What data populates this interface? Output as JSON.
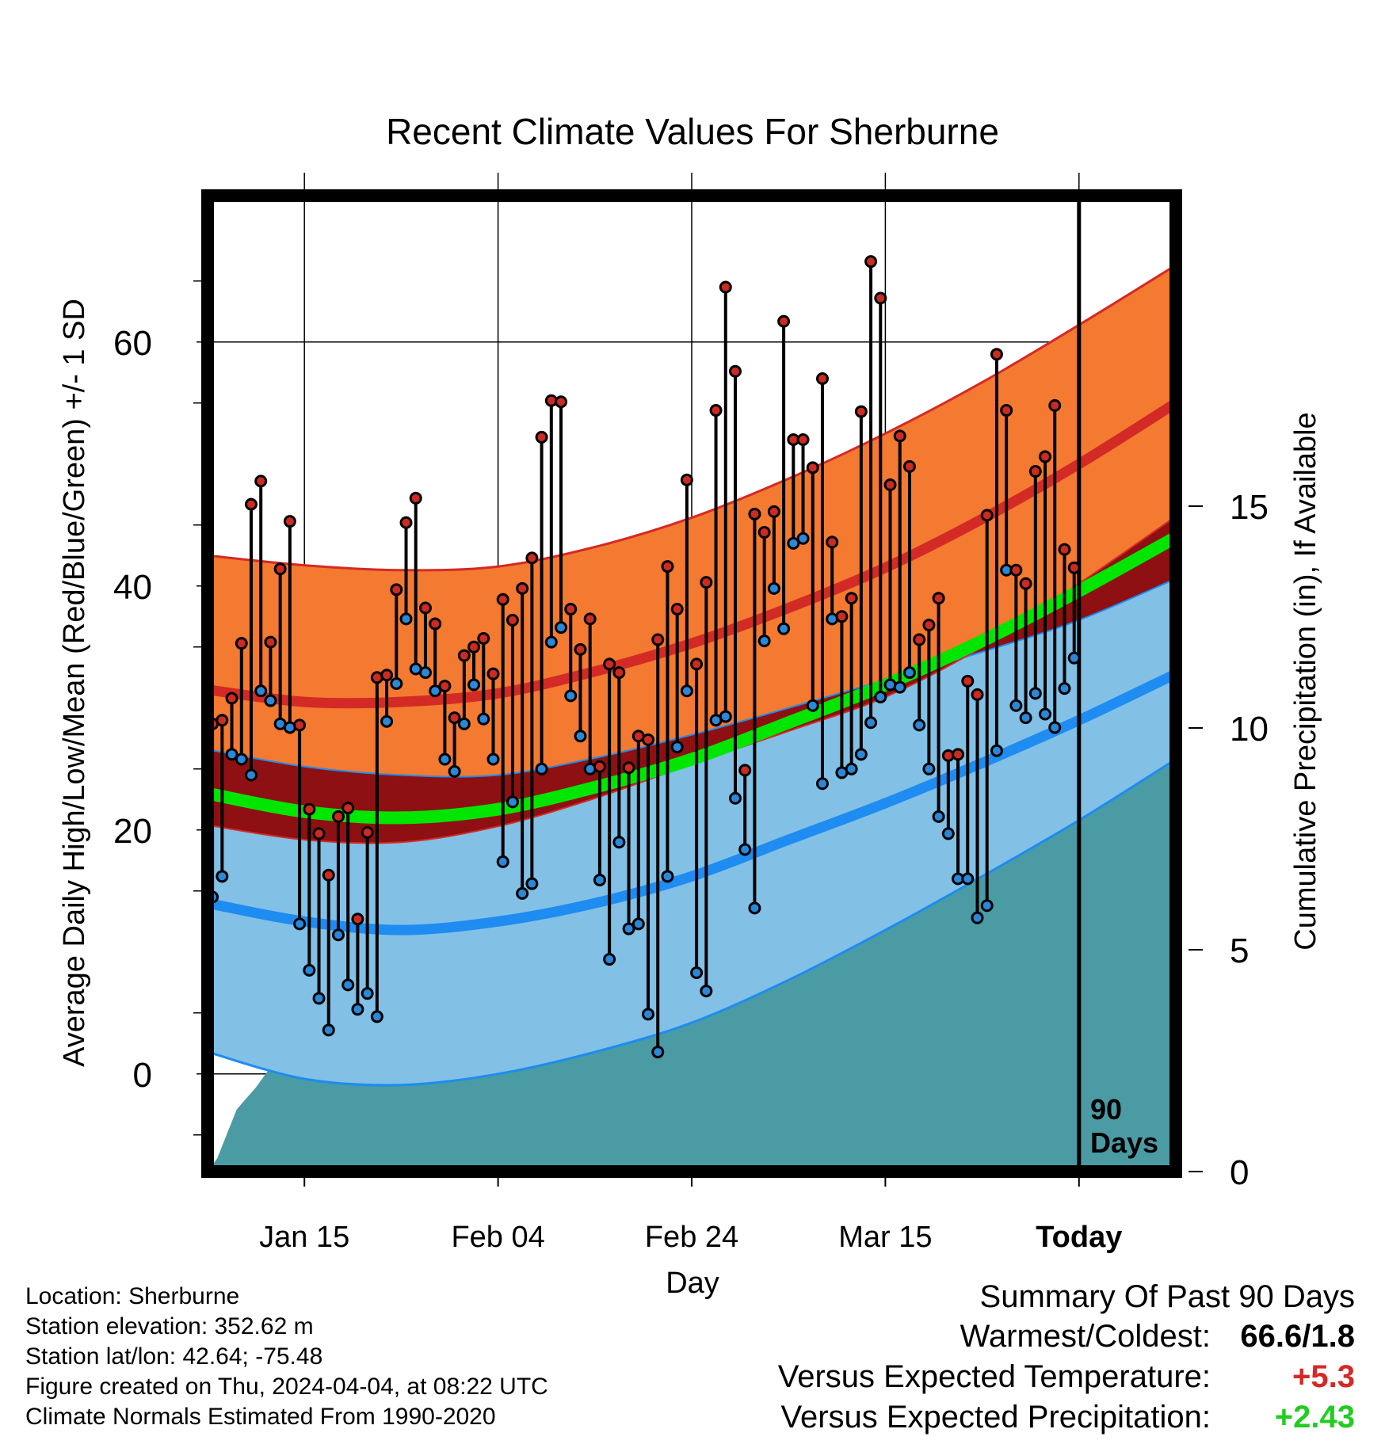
{
  "chart_data": {
    "type": "line",
    "title": "Recent Climate Values For Sherburne",
    "xlabel": "Day",
    "ylabel": "Average Daily High/Low/Mean (Red/Blue/Green) +/- 1 SD",
    "y2label": "Cumulative Precipitation (in), If Available",
    "x_tick_labels": [
      "Jan 15",
      "Feb 04",
      "Feb 24",
      "Mar 15",
      "Today"
    ],
    "x_tick_days": [
      10,
      30,
      50,
      70,
      90
    ],
    "x_range_days": [
      0,
      100
    ],
    "ylim": [
      -8,
      72
    ],
    "y_ticks": [
      0,
      20,
      40,
      60
    ],
    "y2lim": [
      0,
      22
    ],
    "y2_ticks": [
      0,
      5,
      10,
      15
    ],
    "grid": true,
    "today_marker": {
      "day": 90,
      "label_line1": "90",
      "label_line2": "Days"
    },
    "colors": {
      "high_band": "#f37a30",
      "high_mean": "#d42a26",
      "high_edge": "#d42a26",
      "low_band": "#82c0e6",
      "low_mean": "#1e8cf0",
      "low_edge": "#1e8cf0",
      "mean_line": "#00e600",
      "overlap_band": "#8e1012",
      "precip_area": "#4a9ba4",
      "high_point": "#cc2b22",
      "low_point": "#2b88d8"
    },
    "normals": {
      "days": [
        0,
        10,
        20,
        30,
        40,
        50,
        60,
        70,
        80,
        90,
        100
      ],
      "high_mean": [
        31.5,
        30.5,
        30.5,
        31.2,
        33.0,
        35.3,
        38.2,
        41.5,
        45.5,
        50.0,
        55.0
      ],
      "high_sd_upper": [
        42.5,
        41.7,
        41.3,
        41.6,
        43.2,
        45.6,
        48.8,
        52.5,
        56.7,
        61.4,
        66.3
      ],
      "high_sd_lower": [
        20.4,
        19.2,
        19.0,
        20.3,
        22.6,
        25.4,
        28.1,
        30.9,
        35.0,
        40.2,
        45.7
      ],
      "low_mean": [
        14.0,
        12.5,
        11.8,
        12.5,
        14.0,
        16.2,
        19.2,
        22.2,
        25.5,
        29.0,
        32.8
      ],
      "low_sd_upper": [
        26.6,
        25.2,
        24.5,
        24.5,
        25.9,
        27.8,
        30.0,
        32.3,
        34.6,
        37.2,
        40.6
      ],
      "low_sd_lower": [
        1.8,
        -0.4,
        -0.9,
        0.0,
        1.8,
        4.2,
        7.7,
        11.8,
        16.2,
        20.8,
        25.8
      ],
      "mean": [
        23.0,
        21.5,
        21.0,
        21.7,
        23.5,
        25.8,
        28.8,
        31.9,
        35.5,
        39.6,
        44.0
      ]
    },
    "series": [
      {
        "name": "High",
        "values": [
          28.7,
          29.0,
          30.8,
          35.3,
          46.7,
          48.6,
          35.4,
          41.4,
          45.3,
          28.6,
          21.7,
          19.7,
          16.3,
          21.1,
          21.8,
          12.7,
          19.8,
          32.5,
          32.7,
          39.7,
          45.2,
          47.2,
          38.2,
          36.9,
          31.8,
          29.2,
          34.3,
          35.0,
          35.7,
          32.8,
          38.9,
          37.2,
          39.8,
          42.3,
          52.2,
          55.2,
          55.1,
          38.1,
          34.8,
          37.3,
          25.2,
          33.6,
          32.9,
          25.1,
          27.7,
          27.4,
          35.6,
          41.6,
          38.1,
          48.7,
          33.6,
          40.3,
          54.4,
          64.5,
          57.6,
          24.9,
          45.9,
          44.4,
          46.1,
          61.7,
          52.0,
          52.0,
          49.7,
          57.0,
          43.6,
          37.5,
          39.0,
          54.3,
          66.6,
          63.6,
          48.3,
          52.3,
          49.8,
          35.6,
          36.8,
          39.0,
          26.1,
          26.2,
          32.2,
          31.1,
          45.8,
          59.0,
          54.4,
          41.3,
          40.2,
          49.4,
          50.6,
          54.8,
          43.0,
          41.5
        ]
      },
      {
        "name": "Low",
        "values": [
          14.5,
          16.2,
          26.2,
          25.8,
          24.5,
          31.4,
          30.6,
          28.7,
          28.4,
          12.3,
          8.5,
          6.2,
          3.6,
          11.4,
          7.3,
          5.3,
          6.6,
          4.7,
          28.9,
          32.0,
          37.3,
          33.2,
          32.9,
          31.4,
          25.8,
          24.8,
          28.7,
          31.9,
          29.1,
          25.8,
          17.4,
          22.3,
          14.8,
          15.6,
          25.0,
          35.4,
          36.6,
          31.0,
          27.7,
          25.0,
          15.9,
          9.4,
          19.0,
          11.9,
          12.3,
          4.9,
          1.8,
          16.2,
          26.8,
          31.4,
          8.3,
          6.8,
          29.0,
          29.3,
          22.6,
          18.4,
          13.6,
          35.5,
          39.8,
          36.5,
          43.5,
          43.9,
          30.2,
          23.8,
          37.3,
          24.7,
          25.0,
          26.2,
          28.8,
          30.9,
          31.9,
          31.7,
          32.9,
          28.6,
          25.0,
          21.1,
          19.7,
          16.0,
          16.0,
          12.8,
          13.8,
          26.5,
          41.3,
          30.2,
          29.2,
          31.2,
          29.5,
          28.4,
          31.6,
          34.1
        ]
      }
    ],
    "cumulative_precipitation": {
      "days": [
        0,
        1,
        3,
        5,
        7,
        9,
        10,
        12,
        14,
        16,
        18,
        19,
        20,
        21,
        22,
        23,
        24,
        28,
        32,
        36,
        40,
        44,
        48,
        53,
        54,
        56,
        58,
        60,
        62,
        64,
        66,
        67,
        70,
        73,
        75,
        77,
        78,
        79,
        80,
        82,
        84,
        86,
        88,
        89,
        90,
        100
      ],
      "values": [
        0.0,
        0.3,
        1.4,
        1.9,
        2.5,
        2.6,
        2.7,
        2.75,
        2.8,
        2.9,
        3.3,
        3.6,
        4.1,
        4.6,
        5.0,
        5.0,
        5.05,
        5.1,
        5.15,
        5.2,
        5.4,
        5.55,
        5.65,
        5.8,
        6.3,
        6.5,
        7.1,
        7.4,
        8.4,
        8.85,
        8.9,
        9.0,
        9.1,
        9.2,
        9.3,
        9.4,
        9.9,
        10.4,
        10.5,
        10.55,
        10.6,
        10.75,
        11.0,
        12.4,
        12.4,
        12.4
      ]
    }
  },
  "info": {
    "location": "Location: Sherburne",
    "elevation": "Station elevation: 352.62 m",
    "latlon": "Station lat/lon: 42.64; -75.48",
    "created": "Figure created on Thu, 2024-04-04, at 08:22 UTC",
    "normals": "Climate Normals Estimated From 1990-2020"
  },
  "summary": {
    "title": "Summary Of Past 90 Days",
    "rows": [
      {
        "label": "Warmest/Coldest:",
        "value": "66.6/1.8",
        "color": "#000000"
      },
      {
        "label": "Versus Expected Temperature:",
        "value": "+5.3",
        "color": "#d42a26"
      },
      {
        "label": "Versus Expected Precipitation:",
        "value": "+2.43",
        "color": "#22cc22"
      }
    ]
  }
}
